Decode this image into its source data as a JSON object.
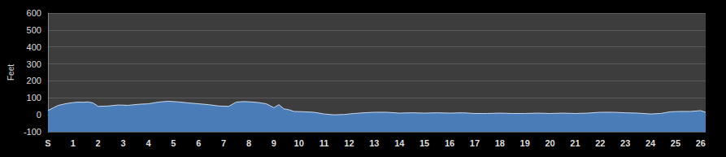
{
  "chart_data": {
    "type": "area",
    "y_label": "Feet",
    "color": "#4a7cb8",
    "grid": true,
    "xlim": [
      0,
      26.2
    ],
    "ylim": [
      -100,
      600
    ],
    "xticks": [
      {
        "value": 0,
        "label": "S"
      },
      1,
      2,
      3,
      4,
      5,
      6,
      7,
      8,
      9,
      10,
      11,
      12,
      13,
      14,
      15,
      16,
      17,
      18,
      19,
      20,
      21,
      22,
      23,
      24,
      25,
      26
    ],
    "yticks": [
      -100,
      0,
      100,
      200,
      300,
      400,
      500,
      600
    ],
    "x": [
      0,
      0.2,
      0.4,
      0.6,
      0.8,
      1.0,
      1.2,
      1.4,
      1.6,
      1.8,
      2.0,
      2.4,
      2.8,
      3.2,
      3.6,
      4.0,
      4.4,
      4.8,
      5.2,
      5.6,
      6.0,
      6.4,
      6.8,
      7.2,
      7.5,
      7.8,
      8.1,
      8.4,
      8.7,
      9.0,
      9.2,
      9.4,
      9.6,
      9.8,
      10.2,
      10.6,
      11.0,
      11.4,
      11.8,
      12.2,
      12.6,
      13.0,
      13.5,
      14.0,
      14.5,
      15.0,
      15.5,
      16.0,
      16.5,
      17.0,
      17.5,
      18.0,
      18.5,
      19.0,
      19.5,
      20.0,
      20.5,
      21.0,
      21.5,
      22.0,
      22.5,
      23.0,
      23.5,
      24.0,
      24.4,
      24.8,
      25.2,
      25.6,
      26.0,
      26.2
    ],
    "values": [
      25,
      40,
      55,
      62,
      68,
      72,
      75,
      74,
      76,
      70,
      50,
      52,
      58,
      56,
      62,
      65,
      75,
      80,
      76,
      70,
      65,
      60,
      52,
      50,
      75,
      78,
      76,
      72,
      65,
      42,
      60,
      35,
      30,
      20,
      18,
      15,
      5,
      0,
      2,
      8,
      12,
      15,
      15,
      10,
      12,
      10,
      12,
      10,
      12,
      8,
      8,
      10,
      8,
      8,
      10,
      8,
      10,
      8,
      10,
      15,
      15,
      12,
      10,
      5,
      8,
      18,
      20,
      20,
      25,
      15
    ]
  }
}
